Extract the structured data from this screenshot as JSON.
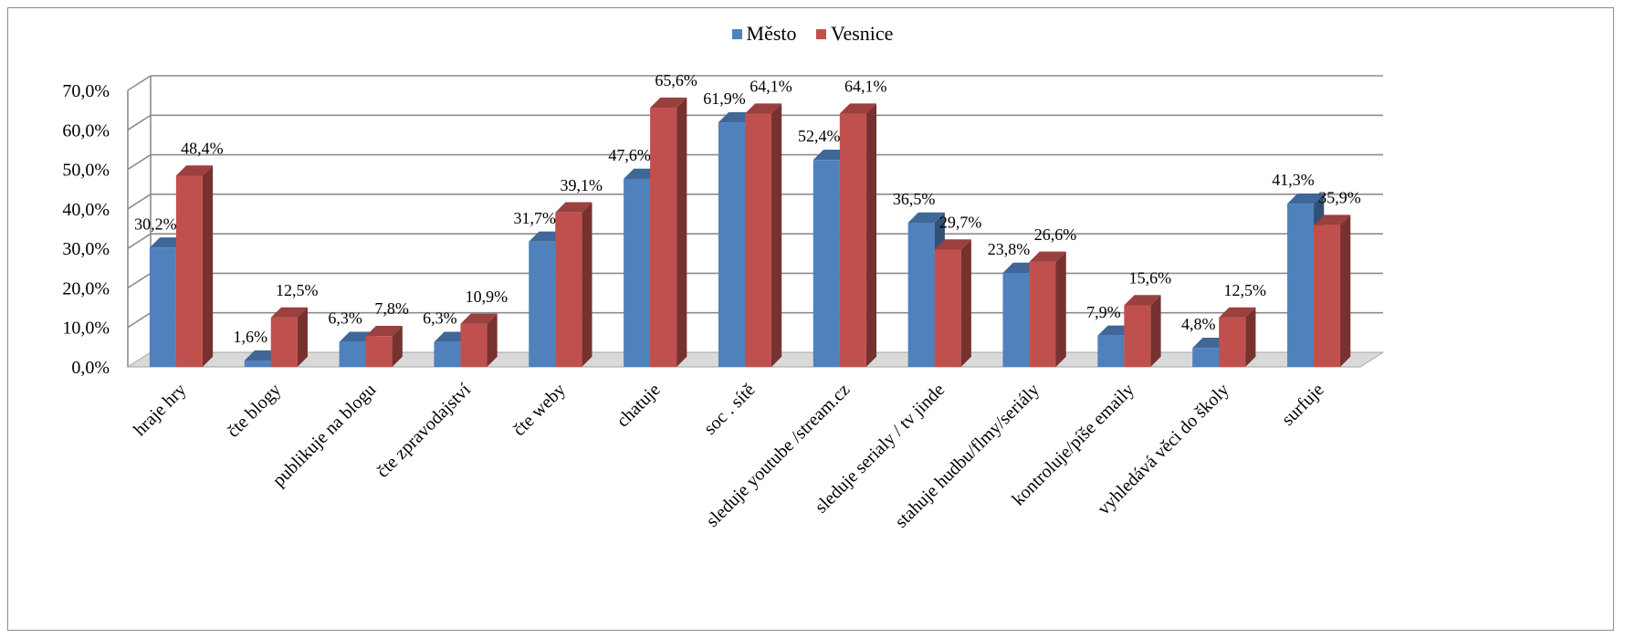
{
  "chart_data": {
    "type": "bar",
    "categories": [
      "hraje hry",
      "čte blogy",
      "publikuje na blogu",
      "čte zpravodajství",
      "čte weby",
      "chatuje",
      "soc . sítě",
      "sleduje youtube /stream.cz",
      "sleduje serialy / tv jinde",
      "stahuje hudbu/flmy/seriály",
      "kontroluje/píše emaily",
      "vyhledává věci do školy",
      "surfuje"
    ],
    "series": [
      {
        "name": "Město",
        "color": "#4f81bd",
        "values": [
          30.2,
          1.6,
          6.3,
          6.3,
          31.7,
          47.6,
          61.9,
          52.4,
          36.5,
          23.8,
          7.9,
          4.8,
          41.3
        ],
        "labels": [
          "30,2%",
          "1,6%",
          "6,3%",
          "6,3%",
          "31,7%",
          "47,6%",
          "61,9%",
          "52,4%",
          "36,5%",
          "23,8%",
          "7,9%",
          "4,8%",
          "41,3%"
        ]
      },
      {
        "name": "Vesnice",
        "color": "#c0504d",
        "values": [
          48.4,
          12.5,
          7.8,
          10.9,
          39.1,
          65.6,
          64.1,
          64.1,
          29.7,
          26.6,
          15.6,
          12.5,
          35.9
        ],
        "labels": [
          "48,4%",
          "12,5%",
          "7,8%",
          "10,9%",
          "39,1%",
          "65,6%",
          "64,1%",
          "64,1%",
          "29,7%",
          "26,6%",
          "15,6%",
          "12,5%",
          "35,9%"
        ]
      }
    ],
    "y_ticks": [
      "0,0%",
      "10,0%",
      "20,0%",
      "30,0%",
      "40,0%",
      "50,0%",
      "60,0%",
      "70,0%"
    ],
    "ylim": [
      0,
      70
    ],
    "title": "",
    "xlabel": "",
    "ylabel": "",
    "grid": true,
    "legend_position": "top-center",
    "style": "3d-clustered-column"
  }
}
